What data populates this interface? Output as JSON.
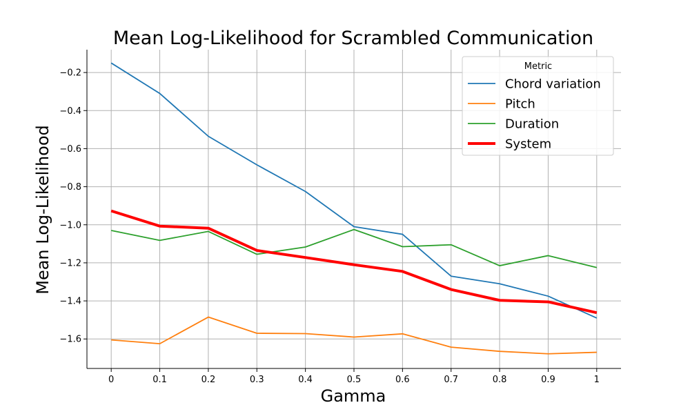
{
  "chart_data": {
    "type": "line",
    "title": "Mean Log-Likelihood for Scrambled Communication",
    "xlabel": "Gamma",
    "ylabel": "Mean Log-Likelihood",
    "x": [
      0,
      0.1,
      0.2,
      0.3,
      0.4,
      0.5,
      0.6,
      0.7,
      0.8,
      0.9,
      1
    ],
    "x_tick_labels": [
      "0",
      "0.1",
      "0.2",
      "0.3",
      "0.4",
      "0.5",
      "0.6",
      "0.7",
      "0.8",
      "0.9",
      "1"
    ],
    "y_ticks": [
      -0.2,
      -0.4,
      -0.6,
      -0.8,
      -1.0,
      -1.2,
      -1.4,
      -1.6
    ],
    "y_tick_labels": [
      "−0.2",
      "−0.4",
      "−0.6",
      "−0.8",
      "−1.0",
      "−1.2",
      "−1.4",
      "−1.6"
    ],
    "xlim": [
      -0.05,
      1.05
    ],
    "ylim": [
      -1.755,
      -0.08
    ],
    "grid": true,
    "legend": {
      "title": "Metric",
      "position": "upper right"
    },
    "series": [
      {
        "name": "Chord variation",
        "color": "#1f77b4",
        "linewidth": 1.8,
        "values": [
          -0.15,
          -0.31,
          -0.535,
          -0.685,
          -0.825,
          -1.01,
          -1.05,
          -1.27,
          -1.31,
          -1.375,
          -1.49
        ]
      },
      {
        "name": "Pitch",
        "color": "#ff7f0e",
        "linewidth": 1.8,
        "values": [
          -1.605,
          -1.625,
          -1.485,
          -1.57,
          -1.572,
          -1.59,
          -1.573,
          -1.643,
          -1.665,
          -1.678,
          -1.67
        ]
      },
      {
        "name": "Duration",
        "color": "#2ca02c",
        "linewidth": 1.8,
        "values": [
          -1.03,
          -1.082,
          -1.035,
          -1.155,
          -1.117,
          -1.025,
          -1.115,
          -1.105,
          -1.215,
          -1.162,
          -1.225
        ]
      },
      {
        "name": "System",
        "color": "#ff0000",
        "linewidth": 4,
        "values": [
          -0.927,
          -1.007,
          -1.018,
          -1.135,
          -1.172,
          -1.21,
          -1.245,
          -1.34,
          -1.397,
          -1.405,
          -1.462
        ]
      }
    ]
  }
}
